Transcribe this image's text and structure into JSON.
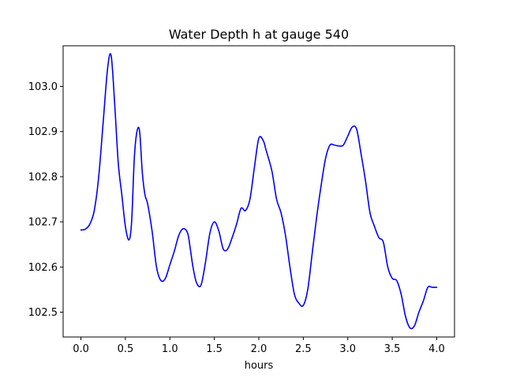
{
  "chart_data": {
    "type": "line",
    "title": "Water Depth h at gauge 540",
    "xlabel": "hours",
    "ylabel": "",
    "xlim": [
      -0.2,
      4.2
    ],
    "ylim": [
      102.445,
      103.09
    ],
    "x_ticks": [
      0.0,
      0.5,
      1.0,
      1.5,
      2.0,
      2.5,
      3.0,
      3.5,
      4.0
    ],
    "x_tick_labels": [
      "0.0",
      "0.5",
      "1.0",
      "1.5",
      "2.0",
      "2.5",
      "3.0",
      "3.5",
      "4.0"
    ],
    "y_ticks": [
      102.5,
      102.6,
      102.7,
      102.8,
      102.9,
      103.0
    ],
    "y_tick_labels": [
      "102.5",
      "102.6",
      "102.7",
      "102.8",
      "102.9",
      "103.0"
    ],
    "grid": false,
    "legend": "none",
    "series": [
      {
        "color": "#0000ff",
        "x": [
          0.0,
          0.05,
          0.1,
          0.15,
          0.2,
          0.25,
          0.3,
          0.34,
          0.38,
          0.42,
          0.46,
          0.5,
          0.54,
          0.57,
          0.6,
          0.63,
          0.66,
          0.69,
          0.72,
          0.75,
          0.8,
          0.85,
          0.9,
          0.95,
          1.0,
          1.05,
          1.1,
          1.15,
          1.2,
          1.23,
          1.26,
          1.3,
          1.35,
          1.4,
          1.45,
          1.5,
          1.55,
          1.6,
          1.65,
          1.7,
          1.75,
          1.8,
          1.85,
          1.9,
          1.95,
          2.0,
          2.05,
          2.08,
          2.11,
          2.15,
          2.2,
          2.25,
          2.3,
          2.35,
          2.4,
          2.45,
          2.5,
          2.55,
          2.6,
          2.65,
          2.7,
          2.75,
          2.8,
          2.85,
          2.9,
          2.95,
          3.0,
          3.05,
          3.1,
          3.15,
          3.2,
          3.25,
          3.3,
          3.35,
          3.4,
          3.45,
          3.5,
          3.55,
          3.6,
          3.65,
          3.7,
          3.75,
          3.8,
          3.85,
          3.9,
          3.95,
          4.0
        ],
        "y": [
          102.682,
          102.684,
          102.695,
          102.725,
          102.8,
          102.92,
          103.04,
          103.068,
          102.96,
          102.83,
          102.76,
          102.69,
          102.66,
          102.7,
          102.84,
          102.9,
          102.9,
          102.81,
          102.76,
          102.74,
          102.68,
          102.6,
          102.57,
          102.575,
          102.605,
          102.635,
          102.67,
          102.685,
          102.675,
          102.64,
          102.6,
          102.565,
          102.56,
          102.61,
          102.675,
          102.7,
          102.68,
          102.64,
          102.64,
          102.665,
          102.695,
          102.73,
          102.725,
          102.75,
          102.82,
          102.885,
          102.88,
          102.86,
          102.84,
          102.81,
          102.75,
          102.72,
          102.67,
          102.6,
          102.54,
          102.52,
          102.515,
          102.55,
          102.63,
          102.71,
          102.78,
          102.84,
          102.87,
          102.87,
          102.868,
          102.87,
          102.89,
          102.91,
          102.905,
          102.85,
          102.79,
          102.72,
          102.69,
          102.665,
          102.655,
          102.6,
          102.575,
          102.57,
          102.54,
          102.49,
          102.465,
          102.47,
          102.5,
          102.525,
          102.555,
          102.555,
          102.555
        ]
      }
    ]
  }
}
